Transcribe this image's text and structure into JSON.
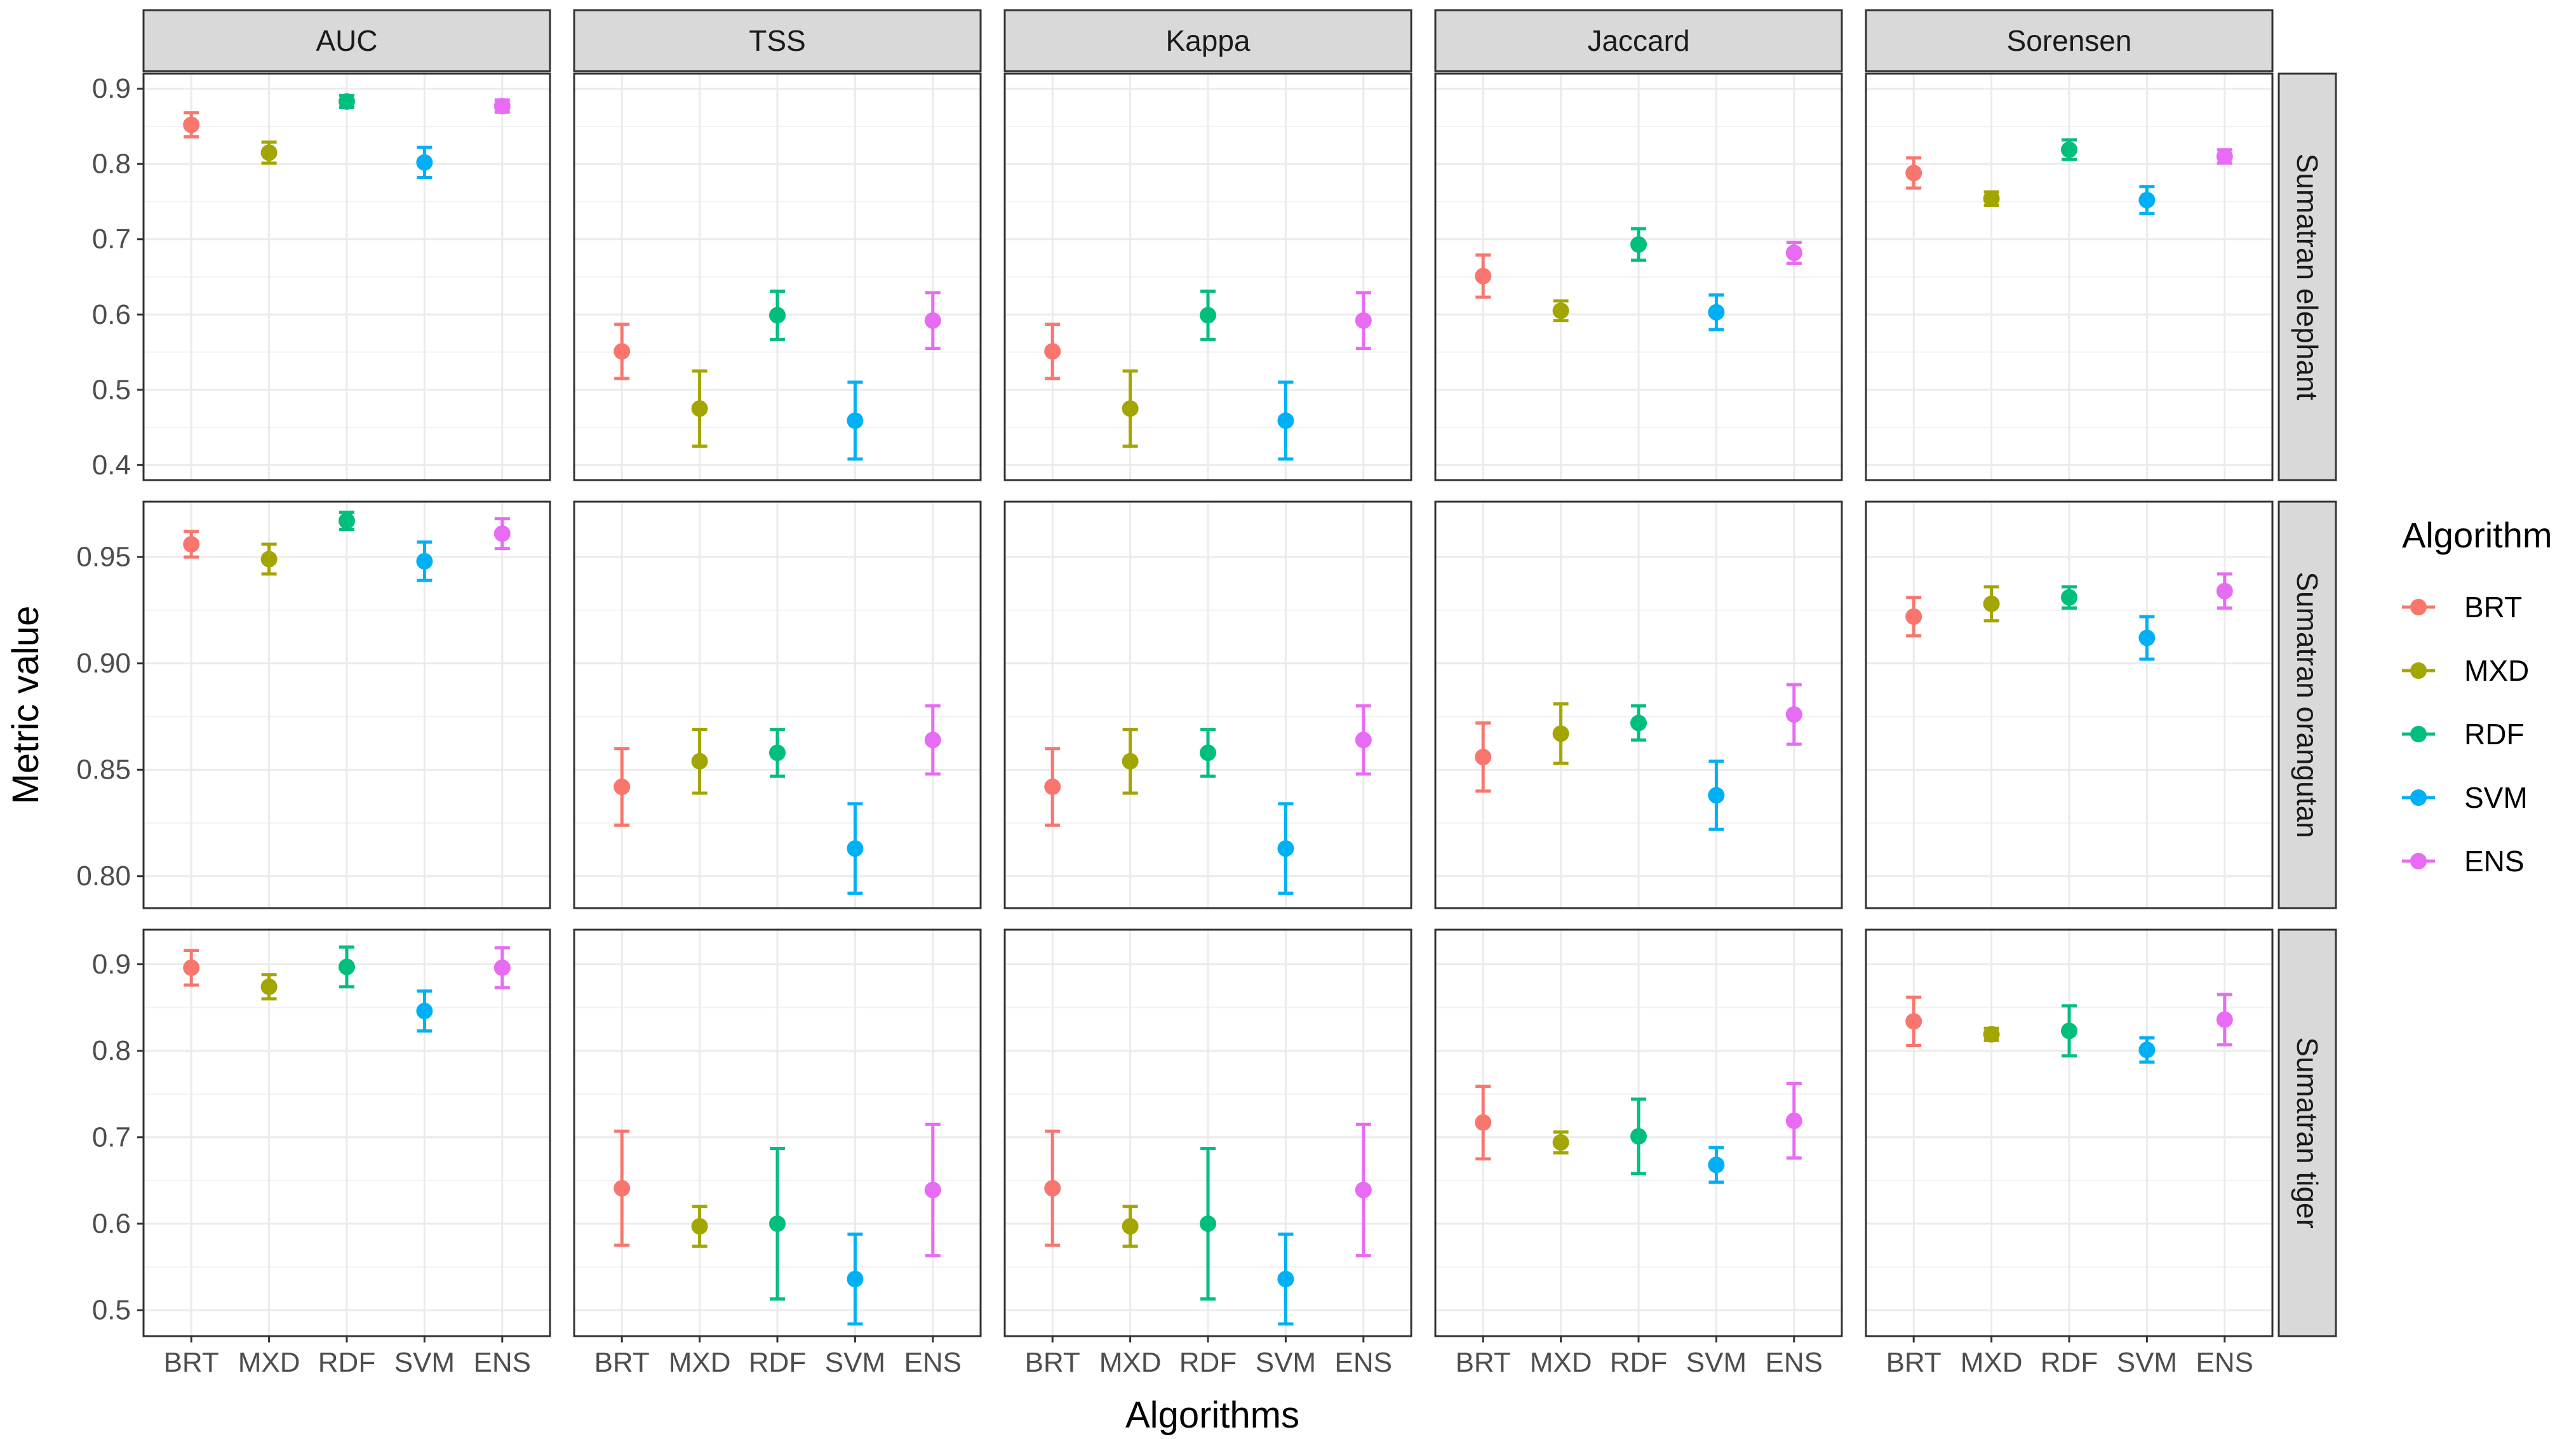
{
  "chart_data": {
    "type": "scatter",
    "subtype": "point-errorbar-facet-grid",
    "xlabel": "Algorithms",
    "ylabel": "Metric value",
    "legend": {
      "title": "Algorithm",
      "position": "right",
      "entries": [
        {
          "name": "BRT",
          "color": "#F8766D"
        },
        {
          "name": "MXD",
          "color": "#A3A500"
        },
        {
          "name": "RDF",
          "color": "#00BF7D"
        },
        {
          "name": "SVM",
          "color": "#00B0F6"
        },
        {
          "name": "ENS",
          "color": "#E76BF3"
        }
      ]
    },
    "categories": [
      "BRT",
      "MXD",
      "RDF",
      "SVM",
      "ENS"
    ],
    "columns": [
      "AUC",
      "TSS",
      "Kappa",
      "Jaccard",
      "Sorensen"
    ],
    "rows": [
      {
        "label": "Sumatran elephant",
        "ylim": [
          0.38,
          0.92
        ],
        "yticks": [
          0.4,
          0.5,
          0.6,
          0.7,
          0.8,
          0.9
        ],
        "ytick_labels": [
          "0.4",
          "0.5",
          "0.6",
          "0.7",
          "0.8",
          "0.9"
        ],
        "panels": [
          {
            "metric": "AUC",
            "values": [
              0.852,
              0.815,
              0.883,
              0.802,
              0.877
            ],
            "lower": [
              0.836,
              0.801,
              0.875,
              0.782,
              0.869
            ],
            "upper": [
              0.868,
              0.829,
              0.891,
              0.822,
              0.885
            ]
          },
          {
            "metric": "TSS",
            "values": [
              0.551,
              0.475,
              0.599,
              0.459,
              0.592
            ],
            "lower": [
              0.515,
              0.425,
              0.567,
              0.408,
              0.555
            ],
            "upper": [
              0.587,
              0.525,
              0.631,
              0.51,
              0.629
            ]
          },
          {
            "metric": "Kappa",
            "values": [
              0.551,
              0.475,
              0.599,
              0.459,
              0.592
            ],
            "lower": [
              0.515,
              0.425,
              0.567,
              0.408,
              0.555
            ],
            "upper": [
              0.587,
              0.525,
              0.631,
              0.51,
              0.629
            ]
          },
          {
            "metric": "Jaccard",
            "values": [
              0.651,
              0.605,
              0.693,
              0.603,
              0.682
            ],
            "lower": [
              0.623,
              0.592,
              0.672,
              0.58,
              0.668
            ],
            "upper": [
              0.679,
              0.618,
              0.714,
              0.626,
              0.696
            ]
          },
          {
            "metric": "Sorensen",
            "values": [
              0.788,
              0.754,
              0.819,
              0.752,
              0.81
            ],
            "lower": [
              0.768,
              0.745,
              0.806,
              0.734,
              0.801
            ],
            "upper": [
              0.808,
              0.763,
              0.832,
              0.77,
              0.819
            ]
          }
        ]
      },
      {
        "label": "Sumatran orangutan",
        "ylim": [
          0.785,
          0.976
        ],
        "yticks": [
          0.8,
          0.85,
          0.9,
          0.95
        ],
        "ytick_labels": [
          "0.80",
          "0.85",
          "0.90",
          "0.95"
        ],
        "panels": [
          {
            "metric": "AUC",
            "values": [
              0.956,
              0.949,
              0.967,
              0.948,
              0.961
            ],
            "lower": [
              0.95,
              0.942,
              0.963,
              0.939,
              0.954
            ],
            "upper": [
              0.962,
              0.956,
              0.971,
              0.957,
              0.968
            ]
          },
          {
            "metric": "TSS",
            "values": [
              0.842,
              0.854,
              0.858,
              0.813,
              0.864
            ],
            "lower": [
              0.824,
              0.839,
              0.847,
              0.792,
              0.848
            ],
            "upper": [
              0.86,
              0.869,
              0.869,
              0.834,
              0.88
            ]
          },
          {
            "metric": "Kappa",
            "values": [
              0.842,
              0.854,
              0.858,
              0.813,
              0.864
            ],
            "lower": [
              0.824,
              0.839,
              0.847,
              0.792,
              0.848
            ],
            "upper": [
              0.86,
              0.869,
              0.869,
              0.834,
              0.88
            ]
          },
          {
            "metric": "Jaccard",
            "values": [
              0.856,
              0.867,
              0.872,
              0.838,
              0.876
            ],
            "lower": [
              0.84,
              0.853,
              0.864,
              0.822,
              0.862
            ],
            "upper": [
              0.872,
              0.881,
              0.88,
              0.854,
              0.89
            ]
          },
          {
            "metric": "Sorensen",
            "values": [
              0.922,
              0.928,
              0.931,
              0.912,
              0.934
            ],
            "lower": [
              0.913,
              0.92,
              0.926,
              0.902,
              0.926
            ],
            "upper": [
              0.931,
              0.936,
              0.936,
              0.922,
              0.942
            ]
          }
        ]
      },
      {
        "label": "Sumatran tiger",
        "ylim": [
          0.47,
          0.94
        ],
        "yticks": [
          0.5,
          0.6,
          0.7,
          0.8,
          0.9
        ],
        "ytick_labels": [
          "0.5",
          "0.6",
          "0.7",
          "0.8",
          "0.9"
        ],
        "panels": [
          {
            "metric": "AUC",
            "values": [
              0.896,
              0.874,
              0.897,
              0.846,
              0.896
            ],
            "lower": [
              0.876,
              0.86,
              0.874,
              0.823,
              0.873
            ],
            "upper": [
              0.916,
              0.888,
              0.92,
              0.869,
              0.919
            ]
          },
          {
            "metric": "TSS",
            "values": [
              0.641,
              0.597,
              0.6,
              0.536,
              0.639
            ],
            "lower": [
              0.575,
              0.574,
              0.513,
              0.484,
              0.563
            ],
            "upper": [
              0.707,
              0.62,
              0.687,
              0.588,
              0.715
            ]
          },
          {
            "metric": "Kappa",
            "values": [
              0.641,
              0.597,
              0.6,
              0.536,
              0.639
            ],
            "lower": [
              0.575,
              0.574,
              0.513,
              0.484,
              0.563
            ],
            "upper": [
              0.707,
              0.62,
              0.687,
              0.588,
              0.715
            ]
          },
          {
            "metric": "Jaccard",
            "values": [
              0.717,
              0.694,
              0.701,
              0.668,
              0.719
            ],
            "lower": [
              0.675,
              0.682,
              0.658,
              0.648,
              0.676
            ],
            "upper": [
              0.759,
              0.706,
              0.744,
              0.688,
              0.762
            ]
          },
          {
            "metric": "Sorensen",
            "values": [
              0.834,
              0.819,
              0.823,
              0.801,
              0.836
            ],
            "lower": [
              0.806,
              0.812,
              0.794,
              0.787,
              0.807
            ],
            "upper": [
              0.862,
              0.826,
              0.852,
              0.815,
              0.865
            ]
          }
        ]
      }
    ]
  }
}
